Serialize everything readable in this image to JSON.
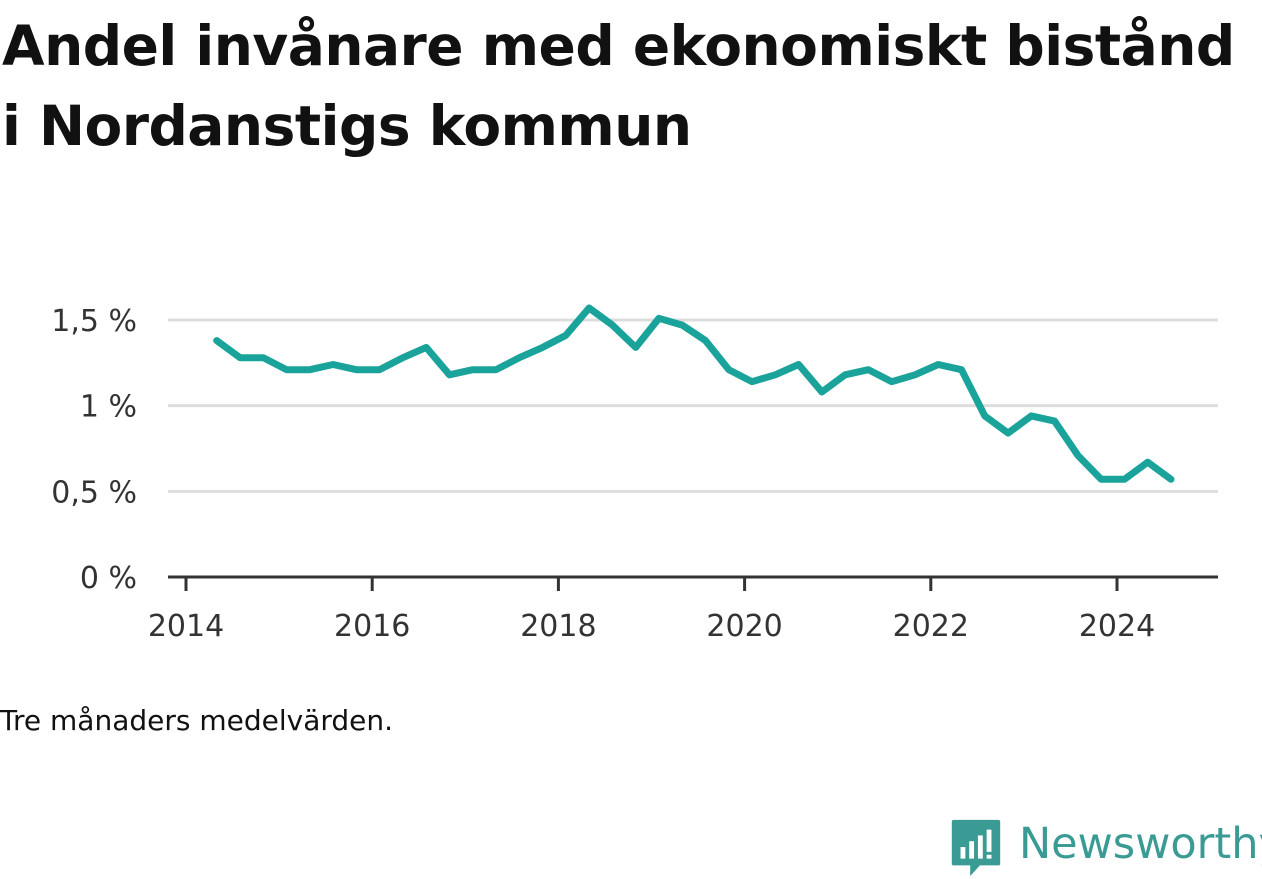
{
  "title": "Andel invånare med ekonomiskt bistånd i Nordanstigs kommun",
  "note": "Tre månaders medelvärden.",
  "brand": {
    "name": "Newsworthy",
    "icon": "bar-chart-speech-bubble-icon",
    "color": "#3a9a94"
  },
  "colors": {
    "line": "#1aa39b",
    "grid": "#dddddd",
    "axis": "#333333"
  },
  "chart_data": {
    "type": "line",
    "title": "Andel invånare med ekonomiskt bistånd i Nordanstigs kommun",
    "xlabel": "",
    "ylabel": "",
    "xlim": [
      2013.95,
      2025.2
    ],
    "ylim": [
      0,
      1.6
    ],
    "grid": true,
    "x_ticks": [
      2014,
      2016,
      2018,
      2020,
      2022,
      2024
    ],
    "x_tick_labels": [
      "2014",
      "2016",
      "2018",
      "2020",
      "2022",
      "2024"
    ],
    "y_ticks": [
      0,
      0.5,
      1.0,
      1.5
    ],
    "y_tick_labels": [
      "0 %",
      "0,5 %",
      "1 %",
      "1,5 %"
    ],
    "series": [
      {
        "x": [
          2014.33,
          2014.58,
          2014.83,
          2015.08,
          2015.33,
          2015.58,
          2015.83,
          2016.08,
          2016.33,
          2016.58,
          2016.83,
          2017.08,
          2017.33,
          2017.58,
          2017.83,
          2018.08,
          2018.33,
          2018.58,
          2018.83,
          2019.08,
          2019.33,
          2019.58,
          2019.83,
          2020.08,
          2020.33,
          2020.58,
          2020.83,
          2021.08,
          2021.33,
          2021.58,
          2021.83,
          2022.08,
          2022.33,
          2022.58,
          2022.83,
          2023.08,
          2023.33,
          2023.58,
          2023.83,
          2024.08,
          2024.33,
          2024.58
        ],
        "y": [
          1.38,
          1.28,
          1.28,
          1.21,
          1.21,
          1.24,
          1.21,
          1.21,
          1.28,
          1.34,
          1.18,
          1.21,
          1.21,
          1.28,
          1.34,
          1.41,
          1.57,
          1.47,
          1.34,
          1.51,
          1.47,
          1.38,
          1.21,
          1.14,
          1.18,
          1.24,
          1.08,
          1.18,
          1.21,
          1.14,
          1.18,
          1.24,
          1.21,
          0.94,
          0.84,
          0.94,
          0.91,
          0.71,
          0.57,
          0.57,
          0.67,
          0.57
        ]
      }
    ]
  }
}
